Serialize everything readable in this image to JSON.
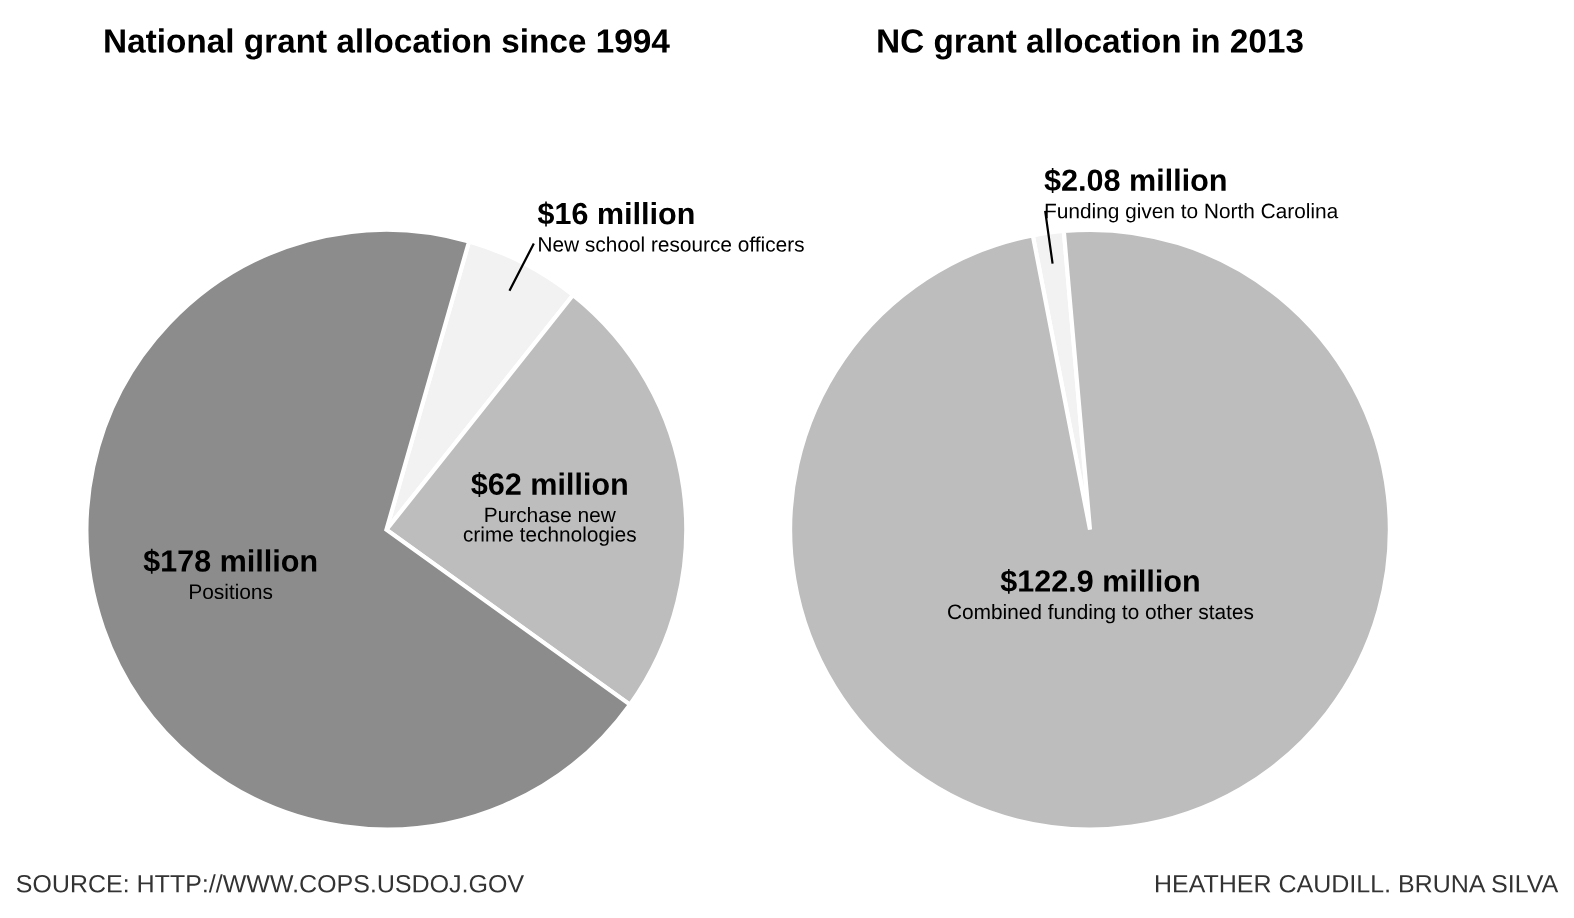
{
  "chart_data": [
    {
      "type": "pie",
      "title": "National grant allocation since 1994",
      "categories": [
        "New school resource officers",
        "Purchase new\ncrime technologies",
        "Positions"
      ],
      "values": [
        16,
        62,
        178
      ],
      "value_labels": [
        "$16 million",
        "$62 million",
        "$178 million"
      ],
      "colors": [
        "#f2f2f2",
        "#bdbdbd",
        "#8c8c8c"
      ],
      "annotations": [
        "SOURCE: HTTP://WWW.COPS.USDOJ.GOV"
      ]
    },
    {
      "type": "pie",
      "title": "NC grant allocation in 2013",
      "categories": [
        "Funding given to North Carolina",
        "Combined funding to other states"
      ],
      "values": [
        2.08,
        122.9
      ],
      "value_labels": [
        "$2.08 million",
        "$122.9 million"
      ],
      "colors": [
        "#f2f2f2",
        "#bdbdbd"
      ],
      "annotations": [
        "HEATHER CAUDILL. BRUNA SILVA"
      ]
    }
  ]
}
